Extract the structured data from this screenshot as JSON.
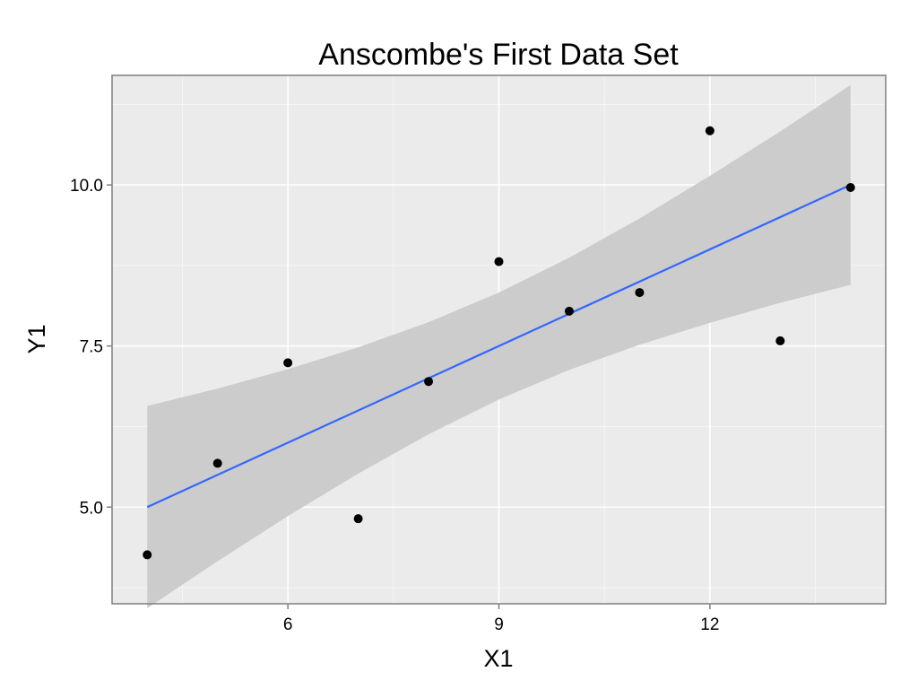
{
  "chart_data": {
    "type": "scatter",
    "title": "Anscombe's First Data Set",
    "xlabel": "X1",
    "ylabel": "Y1",
    "xlim": [
      3.5,
      14.5
    ],
    "ylim": [
      3.5,
      11.7
    ],
    "x_ticks": [
      6,
      9,
      12
    ],
    "x_tick_labels": [
      "6",
      "9",
      "12"
    ],
    "x_minor_ticks": [
      4.5,
      7.5,
      10.5,
      13.5
    ],
    "y_ticks": [
      5.0,
      7.5,
      10.0
    ],
    "y_tick_labels": [
      "5.0",
      "7.5",
      "10.0"
    ],
    "y_minor_ticks": [
      3.75,
      6.25,
      8.75,
      11.25
    ],
    "grid": true,
    "legend": "none",
    "series": [
      {
        "x": [
          10,
          8,
          13,
          9,
          11,
          14,
          6,
          4,
          12,
          7,
          5
        ],
        "y": [
          8.04,
          6.95,
          7.58,
          8.81,
          8.33,
          9.96,
          7.24,
          4.26,
          10.84,
          4.82,
          5.68
        ]
      }
    ],
    "regression": {
      "intercept": 3.0,
      "slope": 0.5,
      "x_range": [
        4,
        14
      ],
      "confidence_band": {
        "x": [
          4,
          5,
          6,
          7,
          8,
          9,
          10,
          11,
          12,
          13,
          14
        ],
        "lower": [
          3.43,
          4.16,
          4.86,
          5.52,
          6.13,
          6.67,
          7.13,
          7.52,
          7.86,
          8.17,
          8.45
        ],
        "upper": [
          6.57,
          6.84,
          7.14,
          7.48,
          7.87,
          8.33,
          8.87,
          9.48,
          10.14,
          10.83,
          11.55
        ]
      }
    },
    "colors": {
      "panel_background": "#ebebeb",
      "panel_border": "#7f7f7f",
      "grid_major": "#ffffff",
      "grid_minor": "#f5f5f5",
      "band_fill": "#cccccc",
      "line": "#3366ff",
      "points": "#000000"
    }
  }
}
